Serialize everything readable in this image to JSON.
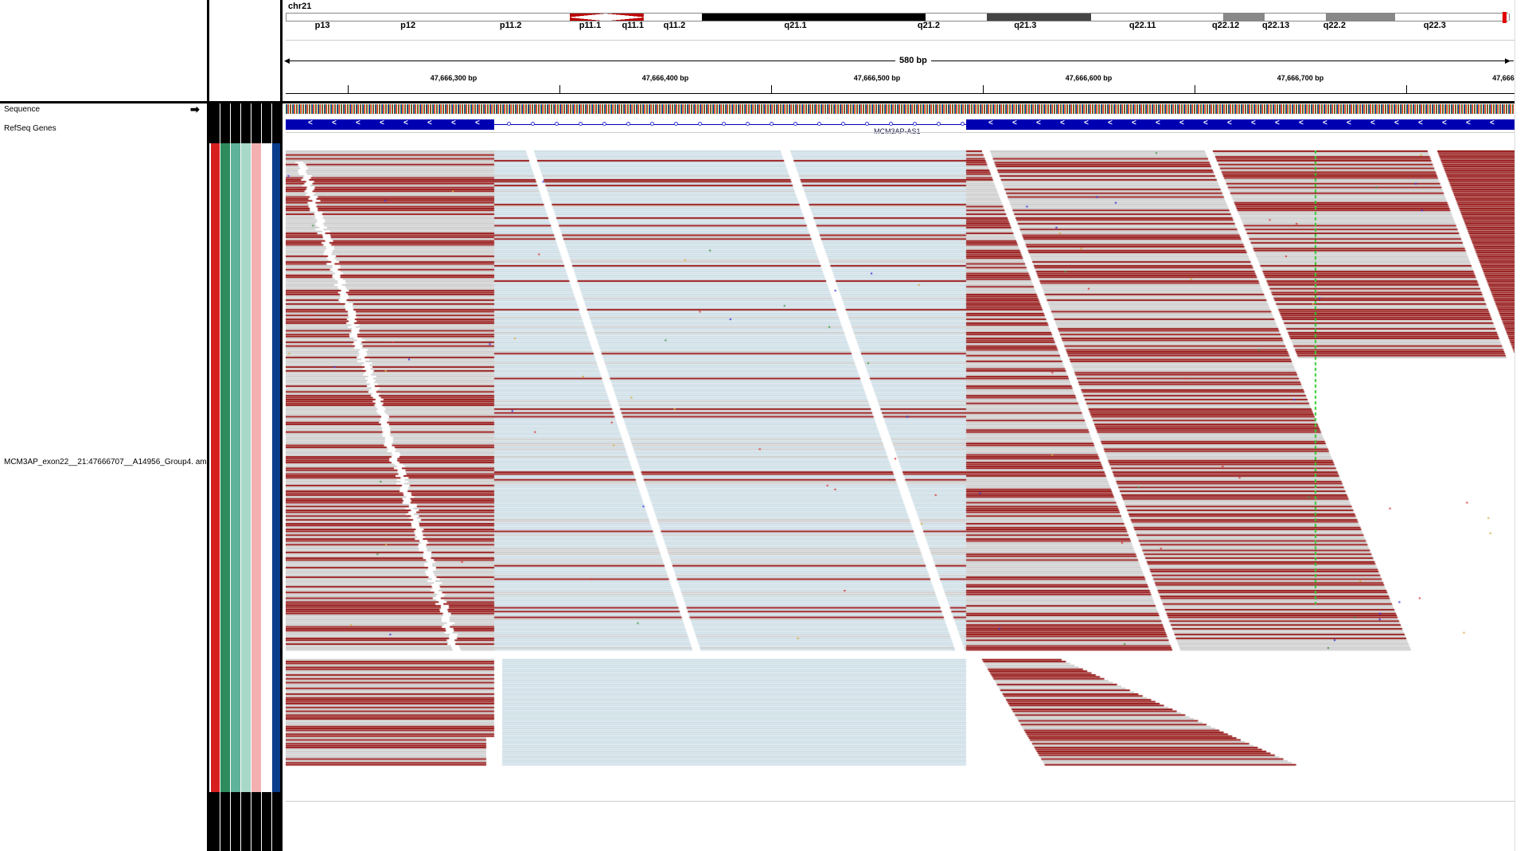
{
  "header": {
    "chromosome": "chr21",
    "span_label": "580 bp",
    "bands": [
      {
        "name": "p13",
        "pos": 0.03,
        "shade": "white"
      },
      {
        "name": "p12",
        "pos": 0.1,
        "shade": "white"
      },
      {
        "name": "p11.2",
        "pos": 0.184,
        "shade": "white"
      },
      {
        "name": "p11.1",
        "pos": 0.249,
        "shade": "centromere-left"
      },
      {
        "name": "q11.1",
        "pos": 0.284,
        "shade": "centromere-right"
      },
      {
        "name": "q11.2",
        "pos": 0.318,
        "shade": "white"
      },
      {
        "name": "q21.1",
        "pos": 0.417,
        "shade": "black"
      },
      {
        "name": "q21.2",
        "pos": 0.526,
        "shade": "white"
      },
      {
        "name": "q21.3",
        "pos": 0.605,
        "shade": "darkgray"
      },
      {
        "name": "q22.11",
        "pos": 0.701,
        "shade": "white"
      },
      {
        "name": "q22.12",
        "pos": 0.769,
        "shade": "gray"
      },
      {
        "name": "q22.13",
        "pos": 0.81,
        "shade": "white"
      },
      {
        "name": "q22.2",
        "pos": 0.858,
        "shade": "gray"
      },
      {
        "name": "q22.3",
        "pos": 0.94,
        "shade": "white"
      }
    ],
    "ruler_ticks": [
      "47,666,300 bp",
      "47,666,400 bp",
      "47,666,500 bp",
      "47,666,600 bp",
      "47,666,700 bp",
      "47,666"
    ]
  },
  "tracks": {
    "sequence_label": "Sequence",
    "sequence_arrow": "➡",
    "refseq_label": "RefSeq Genes",
    "gene_name": "MCM3AP-AS1",
    "bam_label": "MCM3AP_exon22__21:47666707__A14956_Group4.\nam"
  },
  "colors": {
    "read_forward": "#8b0000",
    "read_gray": "#c8c8c8",
    "read_lightblue": "#c9dbe4",
    "gene_blue": "#0000b3",
    "snp_green": "#2ecc2e",
    "attr_red": "#d62020",
    "attr_darkgreen": "#2e8b5e",
    "attr_teal": "#5fb39a",
    "attr_lightgreen": "#a8d8c8",
    "attr_pink": "#f4b0b0",
    "attr_navy": "#0a3c8c"
  }
}
